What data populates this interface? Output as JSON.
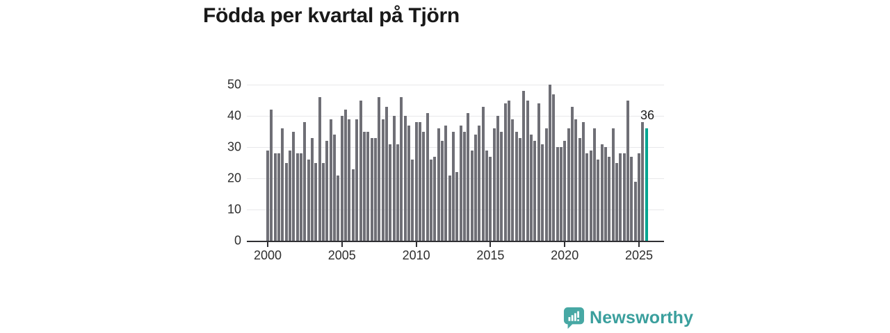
{
  "title": "Födda per kvartal på Tjörn",
  "chart_data": {
    "type": "bar",
    "title": "Födda per kvartal på Tjörn",
    "x_unit": "quarter",
    "start": {
      "year": 2000,
      "quarter": 1
    },
    "end": {
      "year": 2025,
      "quarter": 3
    },
    "values": [
      29,
      42,
      28,
      28,
      36,
      25,
      29,
      35,
      28,
      28,
      38,
      26,
      33,
      25,
      46,
      25,
      32,
      39,
      34,
      21,
      40,
      42,
      39,
      23,
      39,
      45,
      35,
      35,
      33,
      33,
      46,
      39,
      43,
      31,
      40,
      31,
      46,
      40,
      37,
      26,
      38,
      38,
      35,
      41,
      26,
      27,
      36,
      32,
      37,
      21,
      35,
      22,
      37,
      35,
      41,
      29,
      34,
      37,
      43,
      29,
      27,
      36,
      40,
      35,
      44,
      45,
      39,
      35,
      33,
      48,
      45,
      34,
      32,
      44,
      31,
      36,
      50,
      47,
      30,
      30,
      32,
      36,
      43,
      39,
      33,
      38,
      28,
      29,
      36,
      26,
      31,
      30,
      27,
      36,
      25,
      28,
      28,
      45,
      27,
      19,
      28,
      38,
      36
    ],
    "highlight_index": 102,
    "last_value_label": "36",
    "x_tick_labels": [
      "2000",
      "2005",
      "2010",
      "2015",
      "2020",
      "2025"
    ],
    "y_tick_labels": [
      "0",
      "10",
      "20",
      "30",
      "40",
      "50"
    ],
    "ylim": [
      0,
      50
    ],
    "grid": "horizontal",
    "legend": "none",
    "colors": {
      "bar": "#6f6f76",
      "highlight": "#00a591",
      "gridline": "#e8e8ea",
      "axis": "#2f2f33"
    }
  },
  "branding": {
    "logo_text": "Newsworthy",
    "logo_icon": "speech-bubble-bar-chart",
    "color": "#3a9f9d"
  }
}
